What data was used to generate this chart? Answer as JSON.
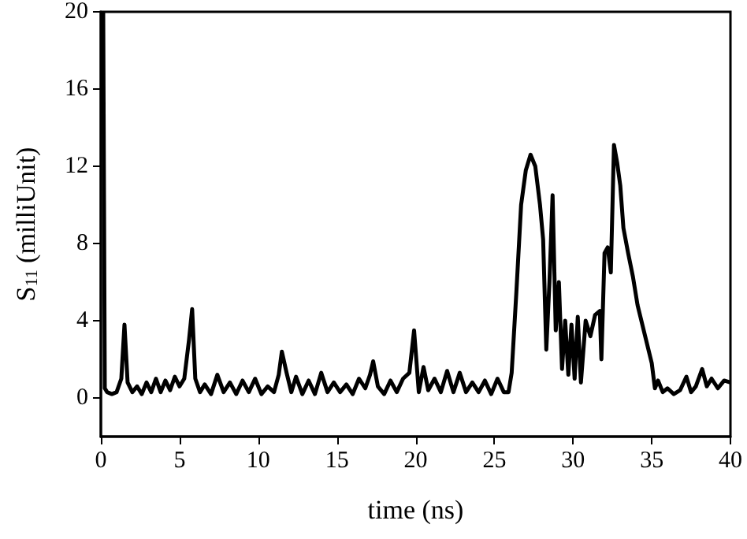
{
  "chart_data": {
    "type": "line",
    "xlabel": "time (ns)",
    "ylabel": "S$_{11}$ (milliUnit)",
    "xlim": [
      0,
      40
    ],
    "xticks": [
      0,
      5,
      10,
      15,
      20,
      25,
      30,
      35,
      40
    ],
    "ylim": [
      -2,
      20
    ],
    "yticks": [
      0,
      4,
      8,
      12,
      16,
      20
    ],
    "grid": false,
    "marker": "none",
    "line_style": "solid",
    "series": [
      {
        "color": "#000000",
        "x": [
          0.15,
          0.25,
          0.4,
          0.7,
          1.0,
          1.3,
          1.5,
          1.7,
          2.0,
          2.3,
          2.6,
          2.9,
          3.2,
          3.5,
          3.8,
          4.1,
          4.4,
          4.7,
          5.0,
          5.3,
          5.6,
          5.8,
          6.0,
          6.3,
          6.6,
          7.0,
          7.4,
          7.8,
          8.2,
          8.6,
          9.0,
          9.4,
          9.8,
          10.2,
          10.6,
          11.0,
          11.3,
          11.5,
          11.8,
          12.1,
          12.4,
          12.8,
          13.2,
          13.6,
          14.0,
          14.4,
          14.8,
          15.2,
          15.6,
          16.0,
          16.4,
          16.8,
          17.1,
          17.3,
          17.6,
          18.0,
          18.4,
          18.8,
          19.2,
          19.6,
          19.9,
          20.2,
          20.5,
          20.8,
          21.2,
          21.6,
          22.0,
          22.4,
          22.8,
          23.2,
          23.6,
          24.0,
          24.4,
          24.8,
          25.2,
          25.6,
          25.9,
          26.1,
          26.4,
          26.7,
          27.0,
          27.3,
          27.6,
          27.9,
          28.1,
          28.3,
          28.5,
          28.7,
          28.9,
          29.1,
          29.3,
          29.5,
          29.7,
          29.9,
          30.1,
          30.3,
          30.5,
          30.8,
          31.1,
          31.4,
          31.7,
          31.8,
          32.0,
          32.2,
          32.4,
          32.6,
          32.8,
          33.0,
          33.2,
          33.5,
          33.8,
          34.1,
          34.4,
          34.7,
          35.0,
          35.2,
          35.4,
          35.7,
          36.0,
          36.4,
          36.8,
          37.2,
          37.5,
          37.8,
          38.2,
          38.5,
          38.8,
          39.2,
          39.6,
          40.0
        ],
        "values": [
          20,
          0.5,
          0.3,
          0.2,
          0.3,
          1.0,
          3.8,
          0.8,
          0.3,
          0.6,
          0.2,
          0.8,
          0.3,
          1.0,
          0.3,
          0.9,
          0.4,
          1.1,
          0.6,
          1.0,
          3.0,
          4.6,
          1.0,
          0.3,
          0.7,
          0.2,
          1.2,
          0.3,
          0.8,
          0.2,
          0.9,
          0.3,
          1.0,
          0.2,
          0.6,
          0.3,
          1.2,
          2.4,
          1.3,
          0.3,
          1.1,
          0.2,
          0.9,
          0.2,
          1.3,
          0.3,
          0.8,
          0.3,
          0.7,
          0.2,
          1.0,
          0.5,
          1.2,
          1.9,
          0.6,
          0.2,
          0.9,
          0.3,
          1.0,
          1.3,
          3.5,
          0.3,
          1.6,
          0.4,
          1.0,
          0.3,
          1.4,
          0.3,
          1.3,
          0.3,
          0.8,
          0.3,
          0.9,
          0.2,
          1.0,
          0.3,
          0.3,
          1.3,
          5.5,
          10.0,
          11.8,
          12.6,
          12.0,
          10.0,
          8.2,
          2.5,
          6.0,
          10.5,
          3.5,
          6.0,
          1.5,
          4.0,
          1.2,
          3.8,
          1.0,
          4.2,
          0.8,
          4.0,
          3.2,
          4.3,
          4.5,
          2.0,
          7.5,
          7.8,
          6.5,
          13.1,
          12.2,
          11.0,
          8.8,
          7.5,
          6.3,
          4.8,
          3.8,
          2.8,
          1.8,
          0.5,
          0.9,
          0.3,
          0.5,
          0.2,
          0.4,
          1.1,
          0.3,
          0.6,
          1.5,
          0.6,
          1.0,
          0.5,
          0.9,
          0.8
        ]
      }
    ]
  }
}
